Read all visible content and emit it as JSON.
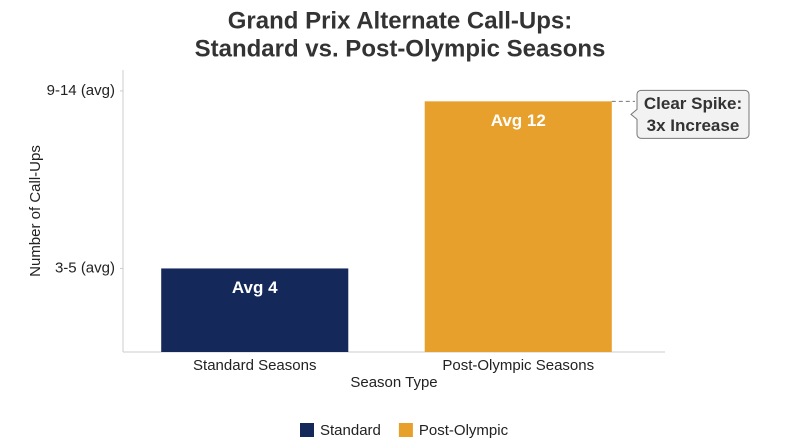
{
  "chart_data": {
    "type": "bar",
    "title": [
      "Grand Prix Alternate Call-Ups:",
      "Standard vs. Post-Olympic Seasons"
    ],
    "x_label": "Season Type",
    "y_label": "Number of Call-Ups",
    "categories": [
      "Standard Seasons",
      "Post-Olympic Seasons"
    ],
    "series": [
      {
        "name": "Standard",
        "color": "#14295a",
        "values": [
          4,
          null
        ],
        "value_labels": [
          "Avg 4",
          null
        ]
      },
      {
        "name": "Post-Olympic",
        "color": "#e8a02c",
        "values": [
          null,
          12
        ],
        "value_labels": [
          null,
          "Avg 12"
        ]
      }
    ],
    "ylim": [
      0,
      13.5
    ],
    "yticks": [
      {
        "value": 4,
        "label": "3-5 (avg)"
      },
      {
        "value": 12.5,
        "label": "9-14 (avg)"
      }
    ],
    "annotation": [
      "Clear Spike:",
      "3x Increase"
    ],
    "legend": "bottom"
  }
}
